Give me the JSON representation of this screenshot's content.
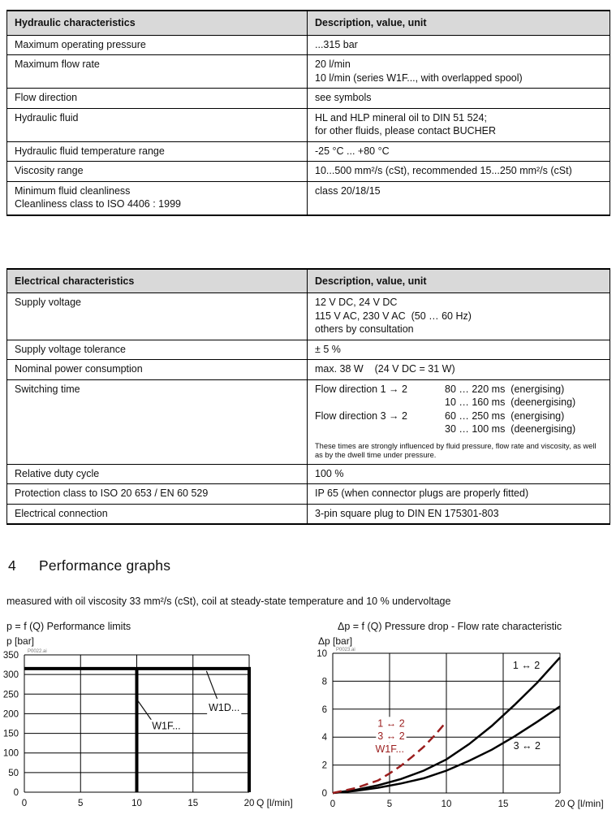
{
  "tables": [
    {
      "header": [
        "Hydraulic characteristics",
        "Description, value, unit"
      ],
      "rows": [
        {
          "label": [
            "Maximum operating pressure"
          ],
          "value": [
            "...315 bar"
          ]
        },
        {
          "label": [
            "Maximum flow rate"
          ],
          "value": [
            "20 l/min",
            "10 l/min (series W1F..., with overlapped spool)"
          ]
        },
        {
          "label": [
            "Flow direction"
          ],
          "value": [
            "see symbols"
          ]
        },
        {
          "label": [
            "Hydraulic fluid"
          ],
          "value": [
            "HL and HLP mineral oil to DIN 51 524;",
            "for other fluids, please contact BUCHER"
          ]
        },
        {
          "label": [
            "Hydraulic fluid temperature range"
          ],
          "value": [
            "-25 °C ... +80 °C"
          ]
        },
        {
          "label": [
            "Viscosity range"
          ],
          "value": [
            "10...500 mm²/s (cSt), recommended 15...250 mm²/s (cSt)"
          ]
        },
        {
          "label": [
            "Minimum fluid cleanliness",
            "Cleanliness class to ISO 4406 : 1999"
          ],
          "value": [
            "class 20/18/15"
          ]
        }
      ]
    },
    {
      "header": [
        "Electrical characteristics",
        "Description, value, unit"
      ],
      "rows": [
        {
          "label": [
            "Supply voltage"
          ],
          "value": [
            "12 V DC, 24 V DC",
            "115 V AC, 230 V AC  (50 … 60 Hz)",
            "others by consultation"
          ]
        },
        {
          "label": [
            "Supply voltage tolerance"
          ],
          "value": [
            "± 5 %"
          ]
        },
        {
          "label": [
            "Nominal power consumption"
          ],
          "value": [
            "max. 38 W    (24 V DC = 31 W)"
          ]
        },
        {
          "label": [
            "Switching time"
          ],
          "value_lines": [
            {
              "left": "Flow direction 1 → 2",
              "right": "80 … 220 ms  (energising)"
            },
            {
              "left": "",
              "right": "10 … 160 ms  (deenergising)"
            },
            {
              "left": "Flow direction 3 → 2",
              "right": "60 … 250 ms  (energising)"
            },
            {
              "left": "",
              "right": "30 … 100 ms  (deenergising)"
            }
          ],
          "note": "These times are strongly influenced by fluid pressure, flow rate and viscosity, as well as by the dwell time under pressure."
        },
        {
          "label": [
            "Relative duty cycle"
          ],
          "value": [
            "100 %"
          ]
        },
        {
          "label": [
            "Protection class to ISO 20 653 / EN 60 529"
          ],
          "value": [
            "IP 65 (when connector plugs are properly fitted)"
          ]
        },
        {
          "label": [
            "Electrical connection"
          ],
          "value": [
            "3-pin square plug to DIN EN 175301-803"
          ]
        }
      ]
    }
  ],
  "section": {
    "number": "4",
    "title": "Performance graphs",
    "measured_note": "measured with oil viscosity 33 mm²/s (cSt), coil at steady-state temperature and 10 % undervoltage"
  },
  "colors": {
    "header_bg": "#d9d9d9",
    "line_black": "#000000",
    "curve_red": "#9b1e1e"
  },
  "chart_data": [
    {
      "type": "line",
      "title": "p = f (Q) Performance limits",
      "file_label": "P0022.ai",
      "xlabel": "Q [l/min]",
      "ylabel": "p [bar]",
      "xlim": [
        0,
        20
      ],
      "ylim": [
        0,
        350
      ],
      "xticks": [
        0,
        5,
        10,
        15,
        20
      ],
      "yticks": [
        0,
        50,
        100,
        150,
        200,
        250,
        300,
        350
      ],
      "grid": true,
      "legend_position": "none",
      "series": [
        {
          "name": "W1D... limit envelope",
          "color": "#000000",
          "width": 4,
          "points": [
            [
              0,
              315
            ],
            [
              20,
              315
            ],
            [
              20,
              0
            ]
          ]
        },
        {
          "name": "W1F... limit line",
          "color": "#000000",
          "width": 4,
          "points": [
            [
              10,
              315
            ],
            [
              10,
              0
            ]
          ]
        }
      ],
      "annotations": [
        {
          "text": "W1F...",
          "x": 11.35,
          "y": 160,
          "color": "#111111",
          "leader": [
            [
              10.1,
              233
            ],
            [
              11.3,
              184
            ]
          ]
        },
        {
          "text": "W1D...",
          "x": 16.4,
          "y": 207,
          "color": "#111111",
          "leader": [
            [
              16.2,
              309
            ],
            [
              17.15,
              238
            ]
          ]
        }
      ]
    },
    {
      "type": "line",
      "title": "Δp = f (Q) Pressure drop - Flow rate characteristic",
      "file_label": "P0023.ai",
      "xlabel": "Q [l/min]",
      "ylabel": "Δp [bar]",
      "xlim": [
        0,
        20
      ],
      "ylim": [
        0,
        10
      ],
      "xticks": [
        0,
        5,
        10,
        15,
        20
      ],
      "yticks": [
        0,
        2,
        4,
        6,
        8,
        10
      ],
      "grid": true,
      "legend_position": "inline-labels",
      "series": [
        {
          "name": "1 ↔ 2",
          "color": "#000000",
          "width": 2.5,
          "points": [
            [
              0,
              0
            ],
            [
              2,
              0.22
            ],
            [
              4,
              0.55
            ],
            [
              6,
              1.0
            ],
            [
              8,
              1.6
            ],
            [
              10,
              2.4
            ],
            [
              12,
              3.5
            ],
            [
              14,
              4.8
            ],
            [
              16,
              6.3
            ],
            [
              18,
              7.9
            ],
            [
              20,
              9.7
            ]
          ]
        },
        {
          "name": "3 ↔ 2",
          "color": "#000000",
          "width": 2.5,
          "points": [
            [
              0,
              0
            ],
            [
              2,
              0.15
            ],
            [
              4,
              0.38
            ],
            [
              6,
              0.68
            ],
            [
              8,
              1.05
            ],
            [
              10,
              1.6
            ],
            [
              12,
              2.3
            ],
            [
              14,
              3.1
            ],
            [
              16,
              4.05
            ],
            [
              18,
              5.1
            ],
            [
              20,
              6.2
            ]
          ]
        },
        {
          "name": "W1F... 1 ↔ 2 / 3 ↔ 2",
          "color": "#9b1e1e",
          "width": 2.5,
          "dash": "11 6",
          "points": [
            [
              0,
              0
            ],
            [
              2,
              0.35
            ],
            [
              4,
              0.9
            ],
            [
              5,
              1.4
            ],
            [
              6,
              1.95
            ],
            [
              7,
              2.6
            ],
            [
              8,
              3.3
            ],
            [
              9,
              4.15
            ],
            [
              10,
              5.1
            ]
          ]
        }
      ],
      "annotations": [
        {
          "text": "1 ↔ 2",
          "x": 15.85,
          "y": 8.9,
          "color": "#111111"
        },
        {
          "text": "3 ↔ 2",
          "x": 15.9,
          "y": 3.15,
          "color": "#111111"
        },
        {
          "text": "1 ↔ 2",
          "x": 3.95,
          "y": 4.75,
          "color": "#9b1e1e"
        },
        {
          "text": "3 ↔ 2",
          "x": 3.95,
          "y": 3.85,
          "color": "#9b1e1e"
        },
        {
          "text": "W1F...",
          "x": 3.75,
          "y": 2.9,
          "color": "#9b1e1e"
        }
      ]
    }
  ]
}
